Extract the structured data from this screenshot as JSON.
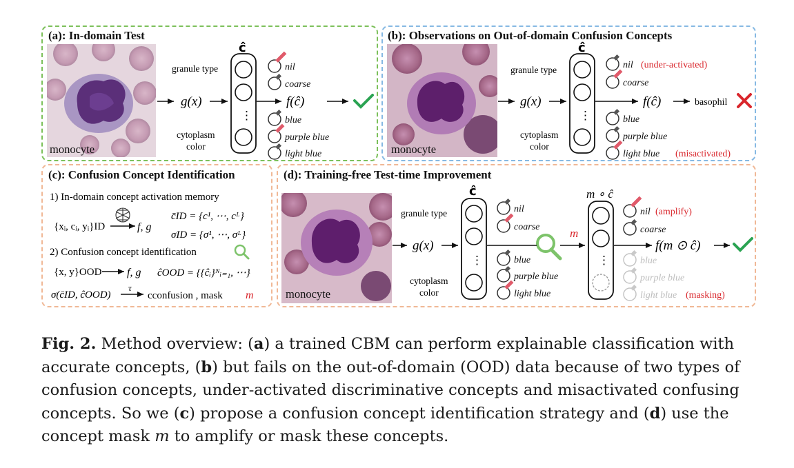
{
  "panels": {
    "a": {
      "title": "(a): In-domain Test",
      "cell_label": "monocyte",
      "granule_type": "granule type",
      "cytoplasm_line1": "cytoplasm",
      "cytoplasm_line2": "color",
      "chat_label": "ĉ",
      "gx": "g(x)",
      "fc": "f(ĉ)",
      "concepts": [
        "nil",
        "coarse",
        "blue",
        "purple blue",
        "light blue"
      ],
      "ellipsis": "⋮",
      "result_icon": "check-icon"
    },
    "b": {
      "title": "(b): Observations on Out-of-domain Confusion Concepts",
      "cell_label": "monocyte",
      "granule_type": "granule type",
      "cytoplasm_line1": "cytoplasm",
      "cytoplasm_line2": "color",
      "chat_label": "ĉ",
      "gx": "g(x)",
      "fc": "f(ĉ)",
      "prediction": "basophil",
      "concepts": [
        "nil",
        "coarse",
        "blue",
        "purple blue",
        "light blue"
      ],
      "nil_note": "(under-activated)",
      "lightblue_note": "(misactivated)",
      "result_icon": "cross-icon"
    },
    "c": {
      "title": "(c): Confusion Concept Identification",
      "step1": "1) In-domain concept activation memory",
      "step2": "2) Confusion concept identification",
      "id_data": "{xᵢ, cᵢ, yᵢ}ID",
      "fg": "f, g",
      "cbar_id": "c̄ID = {c¹, ⋯, cᴸ}",
      "sigma_id": "σID = {σ¹, ⋯, σᴸ}",
      "ood_data": "{x, y}OOD",
      "fg2": "f, g",
      "chat_ood": "ĉOOD = {{ĉᵢ}ᴺᵢ₌₁, ⋯}",
      "sigma_expr": "σ(c̄ID, ĉOOD)",
      "tau": "τ",
      "c_confusion": "cconfusion , mask",
      "mask_m": "m"
    },
    "d": {
      "title": "(d): Training-free Test-time Improvement",
      "cell_label": "monocyte",
      "granule_type": "granule type",
      "cytoplasm_line1": "cytoplasm",
      "cytoplasm_line2": "color",
      "chat_label": "ĉ",
      "mc_label": "m ∘ ĉ",
      "gx": "g(x)",
      "m_label": "m",
      "fmc": "f(m ⊙ ĉ)",
      "concepts_left": [
        "nil",
        "coarse",
        "blue",
        "purple blue",
        "light blue"
      ],
      "concepts_right": [
        "nil",
        "coarse",
        "blue",
        "purple blue",
        "light blue"
      ],
      "amplify_note": "(amplify)",
      "masking_note": "(masking)"
    }
  },
  "caption": {
    "label": "Fig. 2.",
    "text_1": " Method overview: (",
    "a": "a",
    "text_2": ") a trained CBM can perform explainable classification with accurate concepts, (",
    "b": "b",
    "text_3": ") but fails on the out-of-domain (OOD) data because of two types of confusion concepts, under-activated discriminative concepts and misactivated confusing concepts. So we (",
    "c": "c",
    "text_4": ") propose a confusion concept identification strategy and (",
    "d": "d",
    "text_5": ") use the concept mask ",
    "m": "m",
    "text_6": " to amplify or mask these concepts."
  },
  "colors": {
    "green": "#6cb84d",
    "blue": "#7fb2dd",
    "orange": "#efb58e",
    "red": "#d9262c",
    "gray": "#bdbdbd"
  }
}
